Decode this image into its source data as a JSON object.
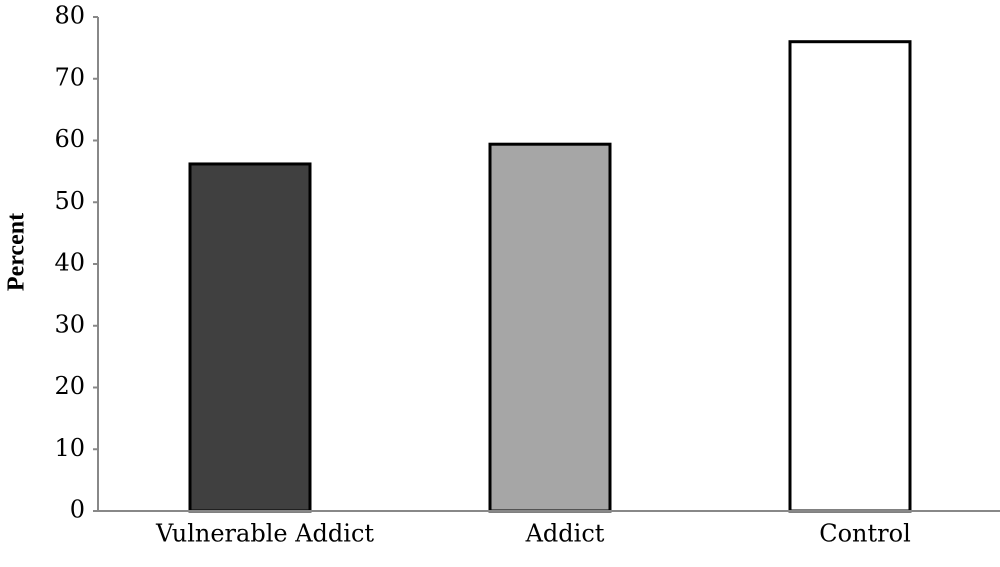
{
  "chart_data": {
    "type": "bar",
    "y_label": "Percent",
    "categories": [
      "Vulnerable Addict",
      "Addict",
      "Control"
    ],
    "values": [
      56.2,
      59.4,
      76
    ],
    "colors": [
      "#404040",
      "#a6a6a6",
      "#ffffff"
    ],
    "ylim": [
      0,
      80
    ],
    "yticks": [
      0,
      10,
      20,
      30,
      40,
      50,
      60,
      70,
      80
    ],
    "grid": false
  }
}
